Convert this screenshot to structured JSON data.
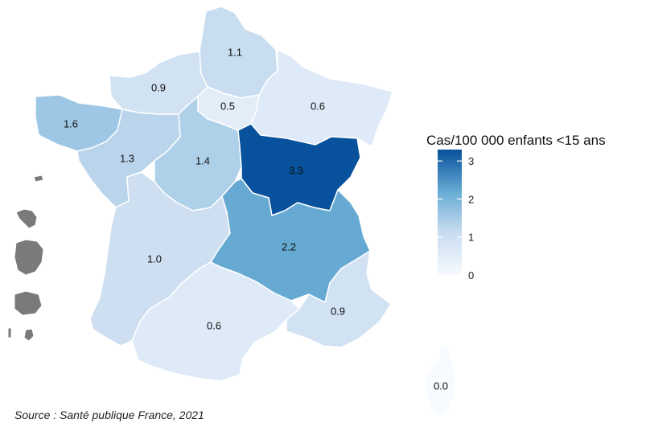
{
  "legend": {
    "title": "Cas/100 000 enfants <15 ans",
    "ticks": [
      0,
      1,
      2,
      3
    ],
    "min": 0,
    "max": 3.3,
    "color_low": "#f7fbff",
    "color_high": "#08519c"
  },
  "regions": [
    {
      "id": "hauts-de-france",
      "value": 1.1,
      "label": "1.1"
    },
    {
      "id": "normandie",
      "value": 0.9,
      "label": "0.9"
    },
    {
      "id": "ile-de-france",
      "value": 0.5,
      "label": "0.5"
    },
    {
      "id": "grand-est",
      "value": 0.6,
      "label": "0.6"
    },
    {
      "id": "bretagne",
      "value": 1.6,
      "label": "1.6"
    },
    {
      "id": "pays-de-la-loire",
      "value": 1.3,
      "label": "1.3"
    },
    {
      "id": "centre-val-de-loire",
      "value": 1.4,
      "label": "1.4"
    },
    {
      "id": "bourgogne-franche-comte",
      "value": 3.3,
      "label": "3.3"
    },
    {
      "id": "nouvelle-aquitaine",
      "value": 1.0,
      "label": "1.0"
    },
    {
      "id": "auvergne-rhone-alpes",
      "value": 2.2,
      "label": "2.2"
    },
    {
      "id": "occitanie",
      "value": 0.6,
      "label": "0.6"
    },
    {
      "id": "provence-alpes-cote-dazur",
      "value": 0.9,
      "label": "0.9"
    },
    {
      "id": "corse",
      "value": 0.0,
      "label": "0.0"
    }
  ],
  "overseas_color": "#7a7a7a",
  "source": "Source : Santé publique France, 2021"
}
